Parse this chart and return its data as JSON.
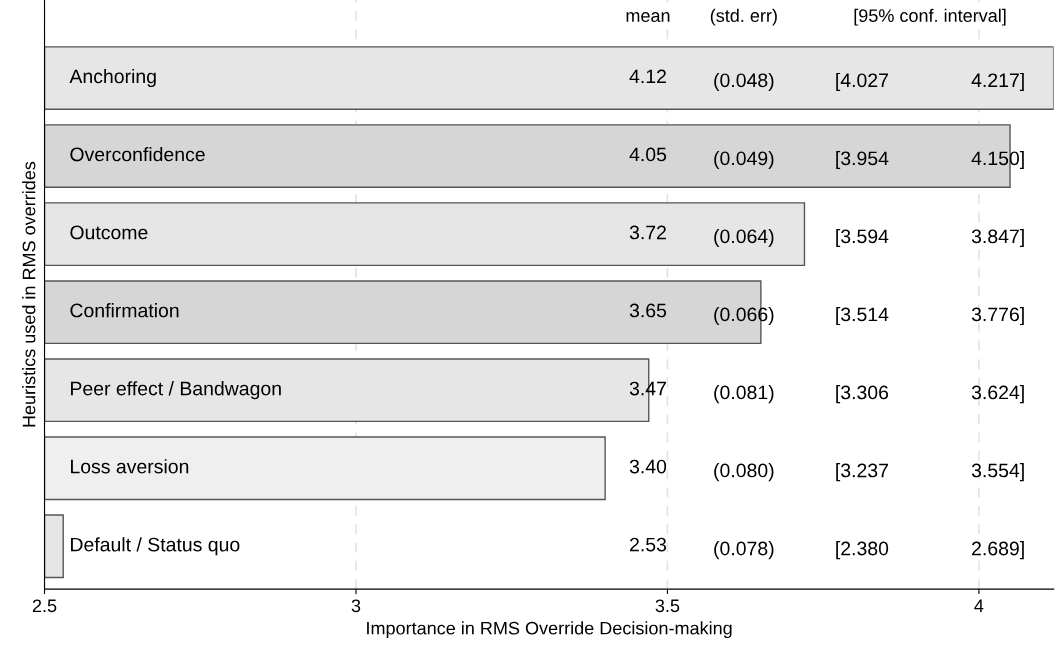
{
  "chart_data": {
    "type": "bar",
    "orientation": "horizontal",
    "xlabel": "Importance in RMS Override Decision-making",
    "ylabel": "Heuristics used in RMS overrides",
    "categories": [
      "Anchoring",
      "Overconfidence",
      "Outcome",
      "Confirmation",
      "Peer effect / Bandwagon",
      "Loss aversion",
      "Default / Status quo"
    ],
    "values": [
      4.12,
      4.05,
      3.72,
      3.65,
      3.47,
      3.4,
      2.53
    ],
    "colors": [
      "#e6e6e6",
      "#d6d6d6",
      "#e6e6e6",
      "#d6d6d6",
      "#e6e6e6",
      "#efefef",
      "#e6e6e6"
    ],
    "value_labels": [
      "4.12",
      "4.05",
      "3.72",
      "3.65",
      "3.47",
      "3.40",
      "2.53"
    ],
    "annotations": [
      "mean",
      "(std. err)",
      "[95% conf. interval]",
      "(0.048)",
      "[4.027",
      "4.217]",
      "(0.049)",
      "[3.954",
      "4.150]",
      "(0.064)",
      "[3.594",
      "3.847]",
      "(0.066)",
      "[3.514",
      "3.776]",
      "(0.081)",
      "[3.306",
      "3.624]",
      "(0.080)",
      "[3.237",
      "3.554]",
      "(0.078)",
      "[2.380",
      "2.689]"
    ],
    "xlim": [
      2.5,
      4.12
    ],
    "xticks": [
      2.5,
      3,
      3.5,
      4
    ],
    "grid": "x"
  }
}
